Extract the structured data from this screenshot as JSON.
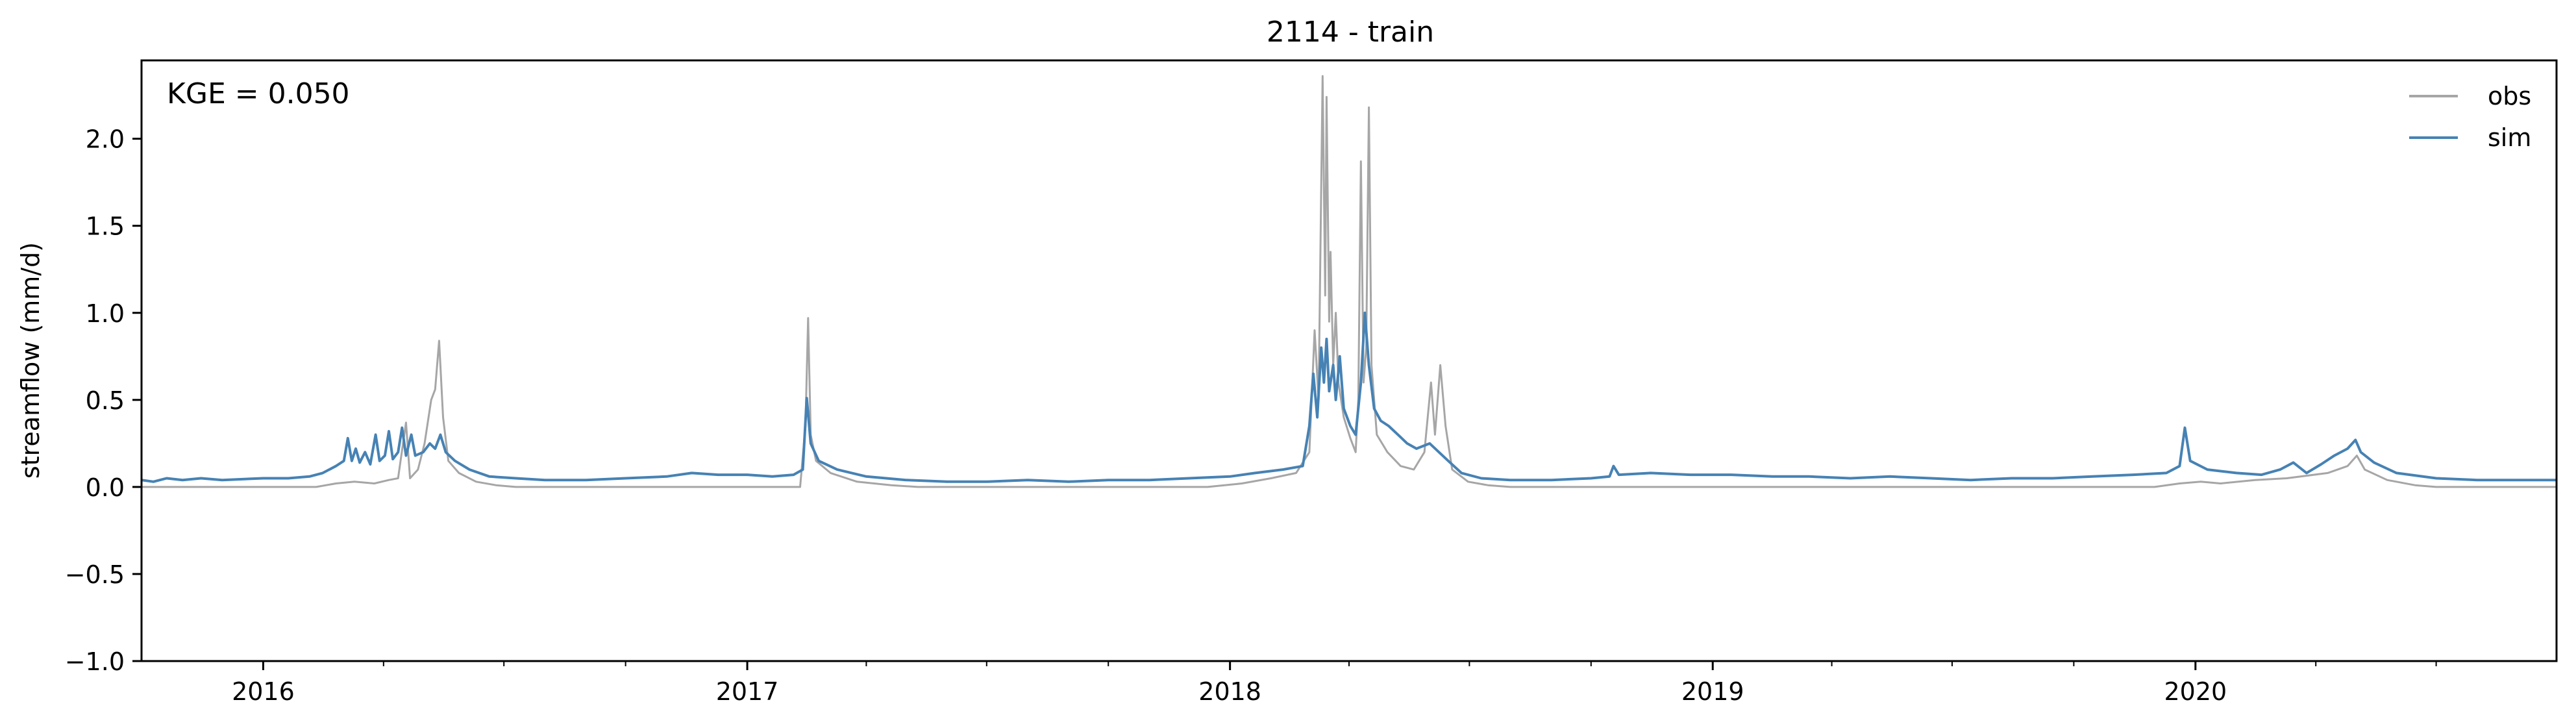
{
  "chart_data": {
    "type": "line",
    "title": "2114 - train",
    "xlabel": "",
    "ylabel": "streamflow (mm/d)",
    "annotation": "KGE = 0.050",
    "xlim": [
      "2015-10-01",
      "2020-09-30"
    ],
    "ylim": [
      -1.0,
      2.45
    ],
    "y_ticks": [
      {
        "value": -1.0,
        "label": "−1.0"
      },
      {
        "value": -0.5,
        "label": "−0.5"
      },
      {
        "value": 0.0,
        "label": "0.0"
      },
      {
        "value": 0.5,
        "label": "0.5"
      },
      {
        "value": 1.0,
        "label": "1.0"
      },
      {
        "value": 1.5,
        "label": "1.5"
      },
      {
        "value": 2.0,
        "label": "2.0"
      }
    ],
    "x_major_ticks": [
      {
        "date": "2016-01-01",
        "label": "2016"
      },
      {
        "date": "2017-01-01",
        "label": "2017"
      },
      {
        "date": "2018-01-01",
        "label": "2018"
      },
      {
        "date": "2019-01-01",
        "label": "2019"
      },
      {
        "date": "2020-01-01",
        "label": "2020"
      }
    ],
    "x_minor_ticks": [
      "2016-04-01",
      "2016-07-01",
      "2016-10-01",
      "2017-04-01",
      "2017-07-01",
      "2017-10-01",
      "2018-04-01",
      "2018-07-01",
      "2018-10-01",
      "2019-04-01",
      "2019-07-01",
      "2019-10-01",
      "2020-04-01",
      "2020-07-01"
    ],
    "grid": false,
    "legend_position": "top-right",
    "series": [
      {
        "name": "obs",
        "color": "#a6a6a6",
        "points": [
          [
            "2015-10-01",
            0.0
          ],
          [
            "2016-02-10",
            0.0
          ],
          [
            "2016-02-25",
            0.02
          ],
          [
            "2016-03-10",
            0.03
          ],
          [
            "2016-03-25",
            0.02
          ],
          [
            "2016-04-05",
            0.04
          ],
          [
            "2016-04-12",
            0.05
          ],
          [
            "2016-04-18",
            0.37
          ],
          [
            "2016-04-21",
            0.05
          ],
          [
            "2016-04-27",
            0.1
          ],
          [
            "2016-05-02",
            0.25
          ],
          [
            "2016-05-07",
            0.5
          ],
          [
            "2016-05-10",
            0.56
          ],
          [
            "2016-05-13",
            0.84
          ],
          [
            "2016-05-16",
            0.4
          ],
          [
            "2016-05-20",
            0.15
          ],
          [
            "2016-05-28",
            0.08
          ],
          [
            "2016-06-10",
            0.03
          ],
          [
            "2016-06-25",
            0.01
          ],
          [
            "2016-07-10",
            0.0
          ],
          [
            "2017-02-10",
            0.0
          ],
          [
            "2017-02-14",
            0.35
          ],
          [
            "2017-02-16",
            0.97
          ],
          [
            "2017-02-18",
            0.3
          ],
          [
            "2017-02-22",
            0.15
          ],
          [
            "2017-03-05",
            0.08
          ],
          [
            "2017-03-25",
            0.03
          ],
          [
            "2017-04-20",
            0.01
          ],
          [
            "2017-05-10",
            0.0
          ],
          [
            "2017-12-15",
            0.0
          ],
          [
            "2018-01-10",
            0.02
          ],
          [
            "2018-02-01",
            0.05
          ],
          [
            "2018-02-20",
            0.08
          ],
          [
            "2018-03-02",
            0.2
          ],
          [
            "2018-03-06",
            0.9
          ],
          [
            "2018-03-09",
            0.5
          ],
          [
            "2018-03-12",
            2.36
          ],
          [
            "2018-03-14",
            1.1
          ],
          [
            "2018-03-15",
            2.24
          ],
          [
            "2018-03-17",
            0.95
          ],
          [
            "2018-03-18",
            1.35
          ],
          [
            "2018-03-20",
            0.7
          ],
          [
            "2018-03-22",
            1.0
          ],
          [
            "2018-03-24",
            0.6
          ],
          [
            "2018-03-28",
            0.4
          ],
          [
            "2018-04-02",
            0.28
          ],
          [
            "2018-04-06",
            0.2
          ],
          [
            "2018-04-08",
            0.5
          ],
          [
            "2018-04-10",
            1.87
          ],
          [
            "2018-04-12",
            0.6
          ],
          [
            "2018-04-14",
            0.8
          ],
          [
            "2018-04-16",
            2.18
          ],
          [
            "2018-04-18",
            0.7
          ],
          [
            "2018-04-22",
            0.3
          ],
          [
            "2018-04-30",
            0.2
          ],
          [
            "2018-05-10",
            0.12
          ],
          [
            "2018-05-20",
            0.1
          ],
          [
            "2018-05-28",
            0.2
          ],
          [
            "2018-06-02",
            0.6
          ],
          [
            "2018-06-05",
            0.3
          ],
          [
            "2018-06-09",
            0.7
          ],
          [
            "2018-06-13",
            0.35
          ],
          [
            "2018-06-18",
            0.1
          ],
          [
            "2018-06-30",
            0.03
          ],
          [
            "2018-07-15",
            0.01
          ],
          [
            "2018-08-01",
            0.0
          ],
          [
            "2019-12-01",
            0.0
          ],
          [
            "2019-12-20",
            0.02
          ],
          [
            "2020-01-05",
            0.03
          ],
          [
            "2020-01-20",
            0.02
          ],
          [
            "2020-02-15",
            0.04
          ],
          [
            "2020-03-10",
            0.05
          ],
          [
            "2020-04-10",
            0.08
          ],
          [
            "2020-04-25",
            0.12
          ],
          [
            "2020-05-02",
            0.18
          ],
          [
            "2020-05-08",
            0.1
          ],
          [
            "2020-05-25",
            0.04
          ],
          [
            "2020-06-15",
            0.01
          ],
          [
            "2020-07-01",
            0.0
          ],
          [
            "2020-09-30",
            0.0
          ]
        ]
      },
      {
        "name": "sim",
        "color": "#4682b4",
        "points": [
          [
            "2015-10-01",
            0.04
          ],
          [
            "2015-10-10",
            0.03
          ],
          [
            "2015-10-20",
            0.05
          ],
          [
            "2015-11-01",
            0.04
          ],
          [
            "2015-11-15",
            0.05
          ],
          [
            "2015-12-01",
            0.04
          ],
          [
            "2016-01-01",
            0.05
          ],
          [
            "2016-01-20",
            0.05
          ],
          [
            "2016-02-05",
            0.06
          ],
          [
            "2016-02-15",
            0.08
          ],
          [
            "2016-02-25",
            0.12
          ],
          [
            "2016-03-02",
            0.15
          ],
          [
            "2016-03-05",
            0.28
          ],
          [
            "2016-03-08",
            0.15
          ],
          [
            "2016-03-11",
            0.22
          ],
          [
            "2016-03-14",
            0.14
          ],
          [
            "2016-03-18",
            0.2
          ],
          [
            "2016-03-22",
            0.13
          ],
          [
            "2016-03-26",
            0.3
          ],
          [
            "2016-03-29",
            0.15
          ],
          [
            "2016-04-02",
            0.18
          ],
          [
            "2016-04-05",
            0.32
          ],
          [
            "2016-04-08",
            0.16
          ],
          [
            "2016-04-12",
            0.2
          ],
          [
            "2016-04-15",
            0.34
          ],
          [
            "2016-04-18",
            0.18
          ],
          [
            "2016-04-22",
            0.3
          ],
          [
            "2016-04-25",
            0.18
          ],
          [
            "2016-05-01",
            0.2
          ],
          [
            "2016-05-06",
            0.25
          ],
          [
            "2016-05-10",
            0.22
          ],
          [
            "2016-05-14",
            0.3
          ],
          [
            "2016-05-18",
            0.2
          ],
          [
            "2016-05-25",
            0.15
          ],
          [
            "2016-06-05",
            0.1
          ],
          [
            "2016-06-20",
            0.06
          ],
          [
            "2016-07-10",
            0.05
          ],
          [
            "2016-08-01",
            0.04
          ],
          [
            "2016-09-01",
            0.04
          ],
          [
            "2016-10-01",
            0.05
          ],
          [
            "2016-11-01",
            0.06
          ],
          [
            "2016-11-20",
            0.08
          ],
          [
            "2016-12-10",
            0.07
          ],
          [
            "2017-01-01",
            0.07
          ],
          [
            "2017-01-20",
            0.06
          ],
          [
            "2017-02-05",
            0.07
          ],
          [
            "2017-02-12",
            0.1
          ],
          [
            "2017-02-15",
            0.51
          ],
          [
            "2017-02-18",
            0.25
          ],
          [
            "2017-02-24",
            0.15
          ],
          [
            "2017-03-10",
            0.1
          ],
          [
            "2017-04-01",
            0.06
          ],
          [
            "2017-05-01",
            0.04
          ],
          [
            "2017-06-01",
            0.03
          ],
          [
            "2017-07-01",
            0.03
          ],
          [
            "2017-08-01",
            0.04
          ],
          [
            "2017-09-01",
            0.03
          ],
          [
            "2017-10-01",
            0.04
          ],
          [
            "2017-11-01",
            0.04
          ],
          [
            "2017-12-01",
            0.05
          ],
          [
            "2018-01-01",
            0.06
          ],
          [
            "2018-01-20",
            0.08
          ],
          [
            "2018-02-10",
            0.1
          ],
          [
            "2018-02-25",
            0.12
          ],
          [
            "2018-03-02",
            0.35
          ],
          [
            "2018-03-05",
            0.65
          ],
          [
            "2018-03-08",
            0.4
          ],
          [
            "2018-03-11",
            0.8
          ],
          [
            "2018-03-13",
            0.6
          ],
          [
            "2018-03-15",
            0.85
          ],
          [
            "2018-03-17",
            0.55
          ],
          [
            "2018-03-20",
            0.7
          ],
          [
            "2018-03-22",
            0.5
          ],
          [
            "2018-03-25",
            0.75
          ],
          [
            "2018-03-28",
            0.45
          ],
          [
            "2018-04-02",
            0.35
          ],
          [
            "2018-04-06",
            0.3
          ],
          [
            "2018-04-10",
            0.6
          ],
          [
            "2018-04-13",
            1.0
          ],
          [
            "2018-04-16",
            0.7
          ],
          [
            "2018-04-20",
            0.45
          ],
          [
            "2018-04-25",
            0.38
          ],
          [
            "2018-05-01",
            0.35
          ],
          [
            "2018-05-08",
            0.3
          ],
          [
            "2018-05-15",
            0.25
          ],
          [
            "2018-05-22",
            0.22
          ],
          [
            "2018-06-01",
            0.25
          ],
          [
            "2018-06-08",
            0.2
          ],
          [
            "2018-06-15",
            0.15
          ],
          [
            "2018-06-25",
            0.08
          ],
          [
            "2018-07-10",
            0.05
          ],
          [
            "2018-08-01",
            0.04
          ],
          [
            "2018-09-01",
            0.04
          ],
          [
            "2018-10-01",
            0.05
          ],
          [
            "2018-10-15",
            0.06
          ],
          [
            "2018-10-18",
            0.12
          ],
          [
            "2018-10-22",
            0.07
          ],
          [
            "2018-11-15",
            0.08
          ],
          [
            "2018-12-15",
            0.07
          ],
          [
            "2019-01-15",
            0.07
          ],
          [
            "2019-02-15",
            0.06
          ],
          [
            "2019-03-15",
            0.06
          ],
          [
            "2019-04-15",
            0.05
          ],
          [
            "2019-05-15",
            0.06
          ],
          [
            "2019-06-15",
            0.05
          ],
          [
            "2019-07-15",
            0.04
          ],
          [
            "2019-08-15",
            0.05
          ],
          [
            "2019-09-15",
            0.05
          ],
          [
            "2019-10-15",
            0.06
          ],
          [
            "2019-11-15",
            0.07
          ],
          [
            "2019-12-10",
            0.08
          ],
          [
            "2019-12-20",
            0.12
          ],
          [
            "2019-12-24",
            0.34
          ],
          [
            "2019-12-28",
            0.15
          ],
          [
            "2020-01-10",
            0.1
          ],
          [
            "2020-02-01",
            0.08
          ],
          [
            "2020-02-20",
            0.07
          ],
          [
            "2020-03-05",
            0.1
          ],
          [
            "2020-03-15",
            0.14
          ],
          [
            "2020-03-25",
            0.08
          ],
          [
            "2020-04-05",
            0.13
          ],
          [
            "2020-04-15",
            0.18
          ],
          [
            "2020-04-25",
            0.22
          ],
          [
            "2020-05-01",
            0.27
          ],
          [
            "2020-05-05",
            0.2
          ],
          [
            "2020-05-15",
            0.14
          ],
          [
            "2020-06-01",
            0.08
          ],
          [
            "2020-07-01",
            0.05
          ],
          [
            "2020-08-01",
            0.04
          ],
          [
            "2020-09-01",
            0.04
          ],
          [
            "2020-09-30",
            0.04
          ]
        ]
      }
    ]
  }
}
